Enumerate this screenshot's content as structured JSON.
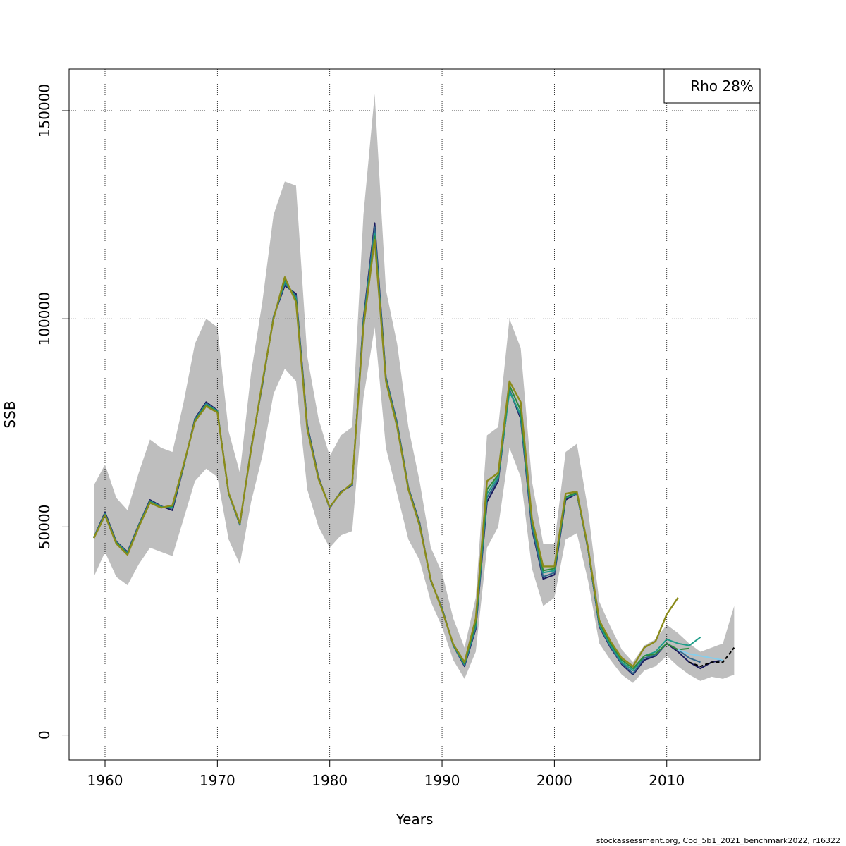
{
  "chart_data": {
    "type": "line",
    "xlabel": "Years",
    "ylabel": "SSB",
    "xlim": [
      1956.8,
      2018.3
    ],
    "ylim": [
      -6000,
      160000
    ],
    "x_ticks": [
      1960,
      1970,
      1980,
      1990,
      2000,
      2010
    ],
    "y_ticks": [
      0,
      50000,
      100000,
      150000
    ],
    "grid": true,
    "legend": {
      "position": "top-right",
      "text": "Rho 28%"
    },
    "footer": "stockassessment.org, Cod_5b1_2021_benchmark2022, r16322",
    "band": {
      "color": "#bebebe",
      "x": [
        1959,
        1960,
        1961,
        1962,
        1963,
        1964,
        1965,
        1966,
        1967,
        1968,
        1969,
        1970,
        1971,
        1972,
        1973,
        1974,
        1975,
        1976,
        1977,
        1978,
        1979,
        1980,
        1981,
        1982,
        1983,
        1984,
        1985,
        1986,
        1987,
        1988,
        1989,
        1990,
        1991,
        1992,
        1993,
        1994,
        1995,
        1996,
        1997,
        1998,
        1999,
        2000,
        2001,
        2002,
        2003,
        2004,
        2005,
        2006,
        2007,
        2008,
        2009,
        2010,
        2011,
        2012,
        2013,
        2014,
        2015,
        2016
      ],
      "upper": [
        60000,
        65000,
        57000,
        54000,
        63000,
        71000,
        69000,
        68000,
        80000,
        94000,
        100000,
        98000,
        73000,
        63000,
        87000,
        104000,
        125000,
        133000,
        132000,
        91000,
        76000,
        67000,
        72000,
        74000,
        125000,
        154000,
        107000,
        94000,
        74000,
        61000,
        45000,
        39000,
        28000,
        21000,
        33000,
        72000,
        74000,
        100000,
        93000,
        61000,
        46000,
        46000,
        68000,
        70000,
        54000,
        32000,
        26000,
        20500,
        17500,
        21500,
        23000,
        26500,
        24500,
        22000,
        20000,
        21000,
        22000,
        31000
      ],
      "lower": [
        38000,
        44000,
        38000,
        36000,
        41000,
        45000,
        44000,
        43000,
        52000,
        61000,
        64000,
        62000,
        47000,
        41000,
        56000,
        67000,
        82000,
        88000,
        85000,
        59000,
        50000,
        45000,
        48000,
        49000,
        81000,
        98000,
        69000,
        58000,
        47000,
        42000,
        32000,
        26000,
        18000,
        13500,
        20000,
        45000,
        50000,
        69000,
        62000,
        40000,
        31000,
        33000,
        47000,
        48500,
        37000,
        22000,
        18000,
        14500,
        12500,
        15500,
        16500,
        19000,
        16500,
        14500,
        13000,
        14000,
        13500,
        14500
      ]
    },
    "series": [
      {
        "color": "#1a1a5e",
        "x": [
          1959,
          1960,
          1961,
          1962,
          1963,
          1964,
          1965,
          1966,
          1967,
          1968,
          1969,
          1970,
          1971,
          1972,
          1973,
          1974,
          1975,
          1976,
          1977,
          1978,
          1979,
          1980,
          1981,
          1982,
          1983,
          1984,
          1985,
          1986,
          1987,
          1988,
          1989,
          1990,
          1991,
          1992,
          1993,
          1994,
          1995,
          1996,
          1997,
          1998,
          1999,
          2000,
          2001,
          2002,
          2003,
          2004,
          2005,
          2006,
          2007,
          2008,
          2009,
          2010,
          2011,
          2012,
          2013,
          2014,
          2015
        ],
        "values": [
          47500,
          53500,
          46500,
          44000,
          50500,
          56500,
          55000,
          54000,
          64500,
          76000,
          80000,
          78000,
          58000,
          50500,
          69000,
          84000,
          100500,
          108000,
          106000,
          74500,
          62000,
          54500,
          58500,
          60000,
          100000,
          123000,
          86000,
          75000,
          59500,
          51000,
          37000,
          30500,
          21500,
          16500,
          25500,
          56000,
          61000,
          83000,
          76000,
          49500,
          37500,
          38500,
          56500,
          58000,
          44500,
          26000,
          21000,
          17000,
          14500,
          18000,
          19000,
          22000,
          20000,
          17500,
          16000,
          17500,
          18000
        ]
      },
      {
        "color": "#31688e",
        "x": [
          1959,
          1960,
          1961,
          1962,
          1963,
          1964,
          1965,
          1966,
          1967,
          1968,
          1969,
          1970,
          1971,
          1972,
          1973,
          1974,
          1975,
          1976,
          1977,
          1978,
          1979,
          1980,
          1981,
          1982,
          1983,
          1984,
          1985,
          1986,
          1987,
          1988,
          1989,
          1990,
          1991,
          1992,
          1993,
          1994,
          1995,
          1996,
          1997,
          1998,
          1999,
          2000,
          2001,
          2002,
          2003,
          2004,
          2005,
          2006,
          2007,
          2008,
          2009,
          2010,
          2011,
          2012,
          2013
        ],
        "values": [
          47500,
          53200,
          46400,
          43800,
          50400,
          56300,
          54900,
          54500,
          64600,
          75800,
          79700,
          77900,
          58000,
          50600,
          68800,
          84200,
          100400,
          108500,
          105500,
          74200,
          61800,
          54600,
          58400,
          60200,
          99500,
          122000,
          85800,
          74800,
          59400,
          50800,
          37000,
          30400,
          21500,
          16700,
          25800,
          57000,
          61500,
          83000,
          76500,
          50000,
          38000,
          39000,
          57000,
          58000,
          44600,
          26200,
          21200,
          17200,
          14800,
          18500,
          19200,
          22000,
          20500,
          18500,
          17500
        ]
      },
      {
        "color": "#1f9e89",
        "x": [
          1959,
          1960,
          1961,
          1962,
          1963,
          1964,
          1965,
          1966,
          1967,
          1968,
          1969,
          1970,
          1971,
          1972,
          1973,
          1974,
          1975,
          1976,
          1977,
          1978,
          1979,
          1980,
          1981,
          1982,
          1983,
          1984,
          1985,
          1986,
          1987,
          1988,
          1989,
          1990,
          1991,
          1992,
          1993,
          1994,
          1995,
          1996,
          1997,
          1998,
          1999,
          2000,
          2001,
          2002,
          2003,
          2004,
          2005,
          2006,
          2007,
          2008,
          2009,
          2010,
          2011,
          2012,
          2013
        ],
        "values": [
          47500,
          53000,
          46300,
          43600,
          50300,
          56100,
          54800,
          54800,
          64700,
          75600,
          79400,
          77800,
          58000,
          50700,
          68700,
          84300,
          100300,
          109000,
          105000,
          74000,
          61700,
          54700,
          58300,
          60300,
          99000,
          120500,
          85500,
          74500,
          59300,
          50600,
          37100,
          30300,
          21600,
          17000,
          26500,
          58000,
          62000,
          82500,
          77000,
          51000,
          39000,
          39500,
          57000,
          58200,
          44700,
          26500,
          21500,
          17500,
          15500,
          19000,
          20000,
          23000,
          22000,
          21500,
          23500
        ]
      },
      {
        "color": "#2e8b3a",
        "x": [
          1959,
          1960,
          1961,
          1962,
          1963,
          1964,
          1965,
          1966,
          1967,
          1968,
          1969,
          1970,
          1971,
          1972,
          1973,
          1974,
          1975,
          1976,
          1977,
          1978,
          1979,
          1980,
          1981,
          1982,
          1983,
          1984,
          1985,
          1986,
          1987,
          1988,
          1989,
          1990,
          1991,
          1992,
          1993,
          1994,
          1995,
          1996,
          1997,
          1998,
          1999,
          2000,
          2001,
          2002,
          2003,
          2004,
          2005,
          2006,
          2007,
          2008,
          2009,
          2010,
          2011,
          2012
        ],
        "values": [
          47400,
          52900,
          46200,
          43500,
          50200,
          56000,
          54700,
          55000,
          64800,
          75500,
          79200,
          77700,
          58100,
          50800,
          68600,
          84500,
          100200,
          109500,
          104500,
          73800,
          61600,
          54800,
          58300,
          60400,
          98500,
          119800,
          85300,
          74300,
          59200,
          50500,
          37200,
          30200,
          21700,
          17200,
          27000,
          59000,
          62500,
          84000,
          78000,
          51500,
          39500,
          40000,
          57200,
          58300,
          44800,
          27000,
          22000,
          18000,
          16000,
          19000,
          19500,
          22000,
          20500,
          20800
        ]
      },
      {
        "color": "#8b8b1a",
        "x": [
          1959,
          1960,
          1961,
          1962,
          1963,
          1964,
          1965,
          1966,
          1967,
          1968,
          1969,
          1970,
          1971,
          1972,
          1973,
          1974,
          1975,
          1976,
          1977,
          1978,
          1979,
          1980,
          1981,
          1982,
          1983,
          1984,
          1985,
          1986,
          1987,
          1988,
          1989,
          1990,
          1991,
          1992,
          1993,
          1994,
          1995,
          1996,
          1997,
          1998,
          1999,
          2000,
          2001,
          2002,
          2003,
          2004,
          2005,
          2006,
          2007,
          2008,
          2009,
          2010,
          2011
        ],
        "values": [
          47300,
          52800,
          46000,
          43300,
          50000,
          55800,
          54600,
          55200,
          65000,
          75300,
          79000,
          77500,
          58200,
          50900,
          68500,
          84700,
          100000,
          110000,
          104000,
          73500,
          61500,
          54800,
          58200,
          60500,
          98000,
          119000,
          85000,
          74000,
          59000,
          50300,
          37300,
          30000,
          21800,
          17500,
          28000,
          61000,
          63000,
          85000,
          80000,
          52000,
          40500,
          40500,
          58000,
          58500,
          45000,
          27500,
          22500,
          18500,
          16500,
          21000,
          22500,
          29000,
          33000
        ]
      },
      {
        "color": "#87ceeb",
        "x": [
          2011,
          2012,
          2013,
          2014,
          2015
        ],
        "values": [
          20500,
          19500,
          19000,
          18500,
          18000
        ]
      },
      {
        "color": "#000000",
        "dashed": true,
        "x": [
          2012,
          2013,
          2014,
          2015,
          2016
        ],
        "values": [
          17500,
          16500,
          17500,
          17500,
          21000
        ]
      }
    ]
  }
}
